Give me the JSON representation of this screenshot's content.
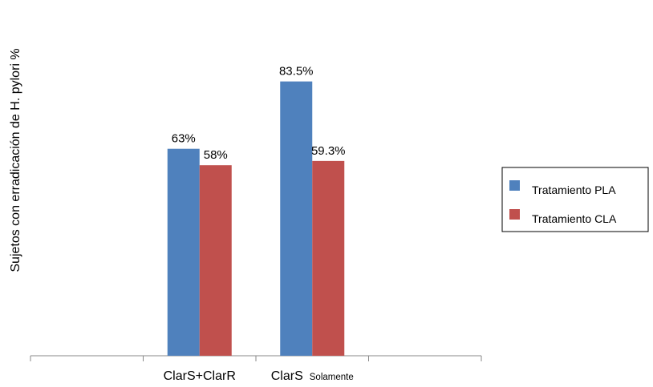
{
  "chart_data": {
    "type": "bar",
    "categories": [
      {
        "main": "ClarS+ClarR",
        "sub": ""
      },
      {
        "main": "ClarS",
        "sub": "Solamente"
      }
    ],
    "series": [
      {
        "name": "Tratamiento PLA",
        "color": "#4f81bd",
        "values": [
          63,
          83.5
        ],
        "labels": [
          "63%",
          "83.5%"
        ]
      },
      {
        "name": "Tratamiento CLA",
        "color": "#c0504d",
        "values": [
          58,
          59.3
        ],
        "labels": [
          "58%",
          "59.3%"
        ]
      }
    ],
    "ylabel": "Sujetos con erradicación de H. pylori  %",
    "ylim": [
      0,
      100
    ],
    "legend_position": "right",
    "grid": false
  }
}
